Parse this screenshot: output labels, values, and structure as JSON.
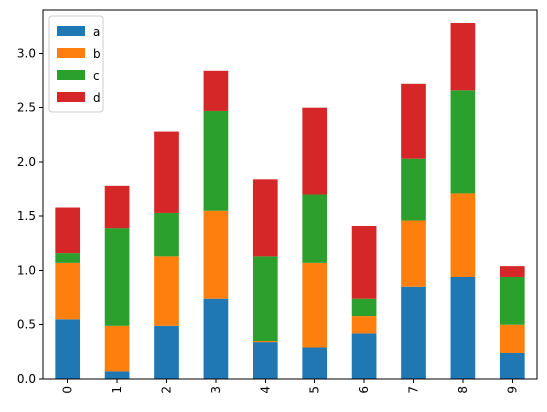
{
  "chart_data": {
    "type": "bar",
    "stacked": true,
    "categories": [
      "0",
      "1",
      "2",
      "3",
      "4",
      "5",
      "6",
      "7",
      "8",
      "9"
    ],
    "series": [
      {
        "name": "a",
        "color": "#1f77b4",
        "values": [
          0.55,
          0.07,
          0.49,
          0.74,
          0.34,
          0.29,
          0.42,
          0.85,
          0.94,
          0.24
        ]
      },
      {
        "name": "b",
        "color": "#ff7f0e",
        "values": [
          0.52,
          0.42,
          0.64,
          0.81,
          0.01,
          0.78,
          0.16,
          0.61,
          0.77,
          0.26
        ]
      },
      {
        "name": "c",
        "color": "#2ca02c",
        "values": [
          0.09,
          0.9,
          0.4,
          0.92,
          0.78,
          0.63,
          0.16,
          0.57,
          0.95,
          0.44
        ]
      },
      {
        "name": "d",
        "color": "#d62728",
        "values": [
          0.42,
          0.39,
          0.75,
          0.37,
          0.71,
          0.8,
          0.67,
          0.69,
          0.62,
          0.1
        ]
      }
    ],
    "ylim": [
      0,
      3.4
    ],
    "yticks": [
      0.0,
      0.5,
      1.0,
      1.5,
      2.0,
      2.5,
      3.0
    ],
    "ytick_labels": [
      "0.0",
      "0.5",
      "1.0",
      "1.5",
      "2.0",
      "2.5",
      "3.0"
    ],
    "xtick_rotation": "vertical",
    "grid": false,
    "legend_placement": "upper-left",
    "title": "",
    "xlabel": "",
    "ylabel": ""
  }
}
